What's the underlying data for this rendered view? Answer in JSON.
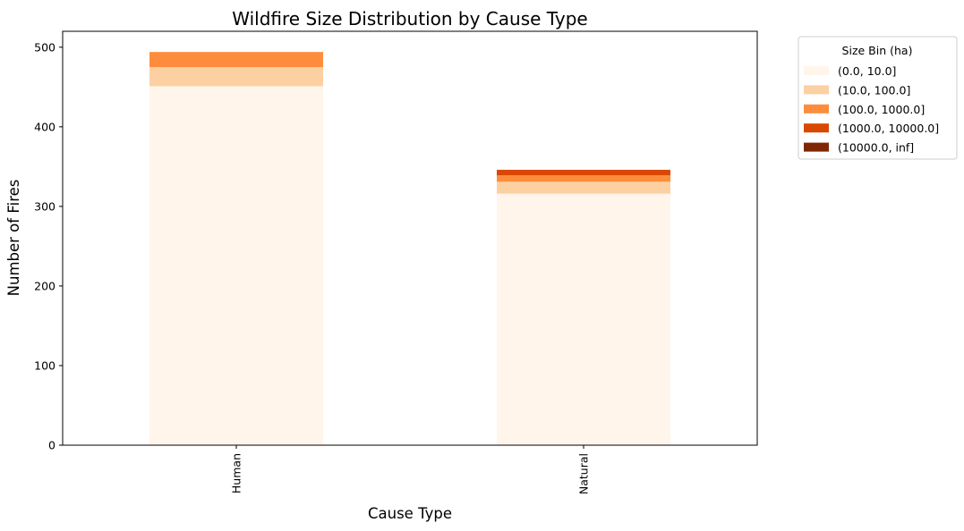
{
  "chart_data": {
    "type": "bar",
    "stacked": true,
    "title": "Wildfire Size Distribution by Cause Type",
    "xlabel": "Cause Type",
    "ylabel": "Number of Fires",
    "categories": [
      "Human",
      "Natural"
    ],
    "ylim": [
      0,
      520
    ],
    "yticks": [
      0,
      100,
      200,
      300,
      400,
      500
    ],
    "grid": false,
    "legend": {
      "title": "Size Bin (ha)",
      "placement": "outside-top-right"
    },
    "series": [
      {
        "name": "(0.0, 10.0]",
        "color": "#fff5eb",
        "values": [
          451,
          316
        ]
      },
      {
        "name": "(10.0, 100.0]",
        "color": "#fdd0a2",
        "values": [
          24,
          15
        ]
      },
      {
        "name": "(100.0, 1000.0]",
        "color": "#fd8d3c",
        "values": [
          19,
          8
        ]
      },
      {
        "name": "(1000.0, 10000.0]",
        "color": "#d94801",
        "values": [
          0,
          7
        ]
      },
      {
        "name": "(10000.0, inf]",
        "color": "#7f2704",
        "values": [
          0,
          0
        ]
      }
    ]
  }
}
